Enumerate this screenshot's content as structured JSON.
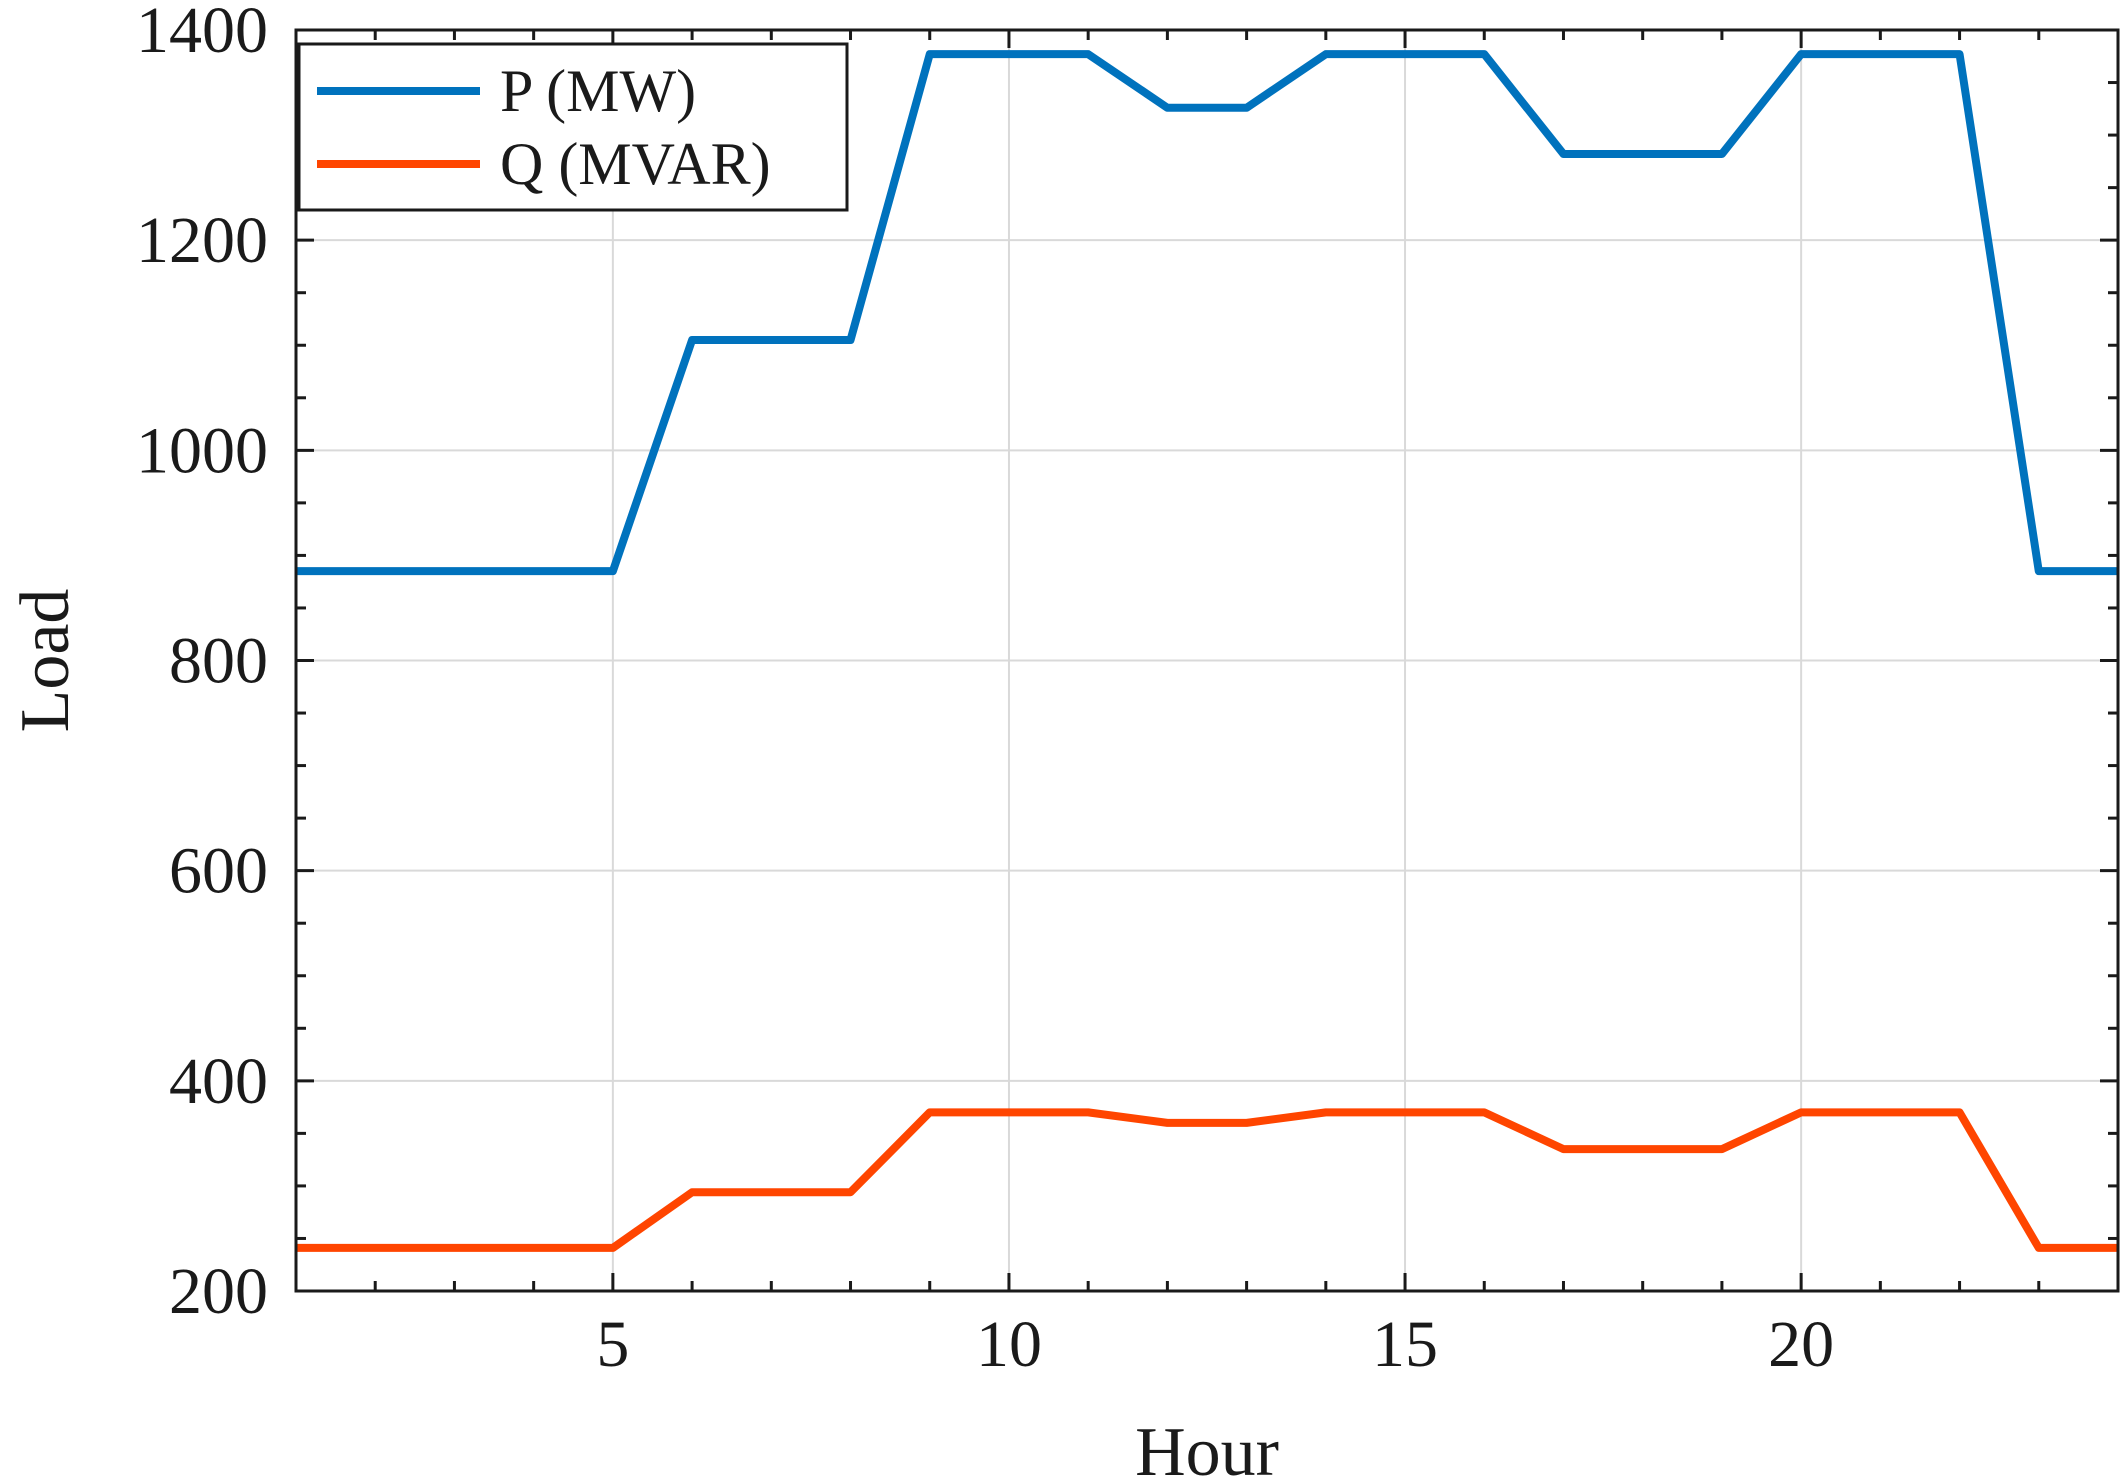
{
  "chart_data": {
    "type": "line",
    "xlabel": "Hour",
    "ylabel": "Load",
    "xlim": [
      1,
      24
    ],
    "ylim": [
      200,
      1400
    ],
    "xticks": [
      5,
      10,
      15,
      20
    ],
    "yticks": [
      200,
      400,
      600,
      800,
      1000,
      1200,
      1400
    ],
    "grid": true,
    "legend_position": "top-left",
    "x": [
      1,
      2,
      3,
      4,
      5,
      6,
      7,
      8,
      9,
      10,
      11,
      12,
      13,
      14,
      15,
      16,
      17,
      18,
      19,
      20,
      21,
      22,
      23,
      24
    ],
    "series": [
      {
        "name": "P (MW)",
        "color": "#0072BD",
        "values": [
          885,
          885,
          885,
          885,
          885,
          1105,
          1105,
          1105,
          1377,
          1377,
          1377,
          1326,
          1326,
          1377,
          1377,
          1377,
          1282,
          1282,
          1282,
          1377,
          1377,
          1377,
          885,
          885
        ]
      },
      {
        "name": "Q (MVAR)",
        "color": "#FF4500",
        "values": [
          241,
          241,
          241,
          241,
          241,
          294,
          294,
          294,
          370,
          370,
          370,
          360,
          360,
          370,
          370,
          370,
          335,
          335,
          335,
          370,
          370,
          370,
          241,
          241
        ]
      }
    ]
  }
}
